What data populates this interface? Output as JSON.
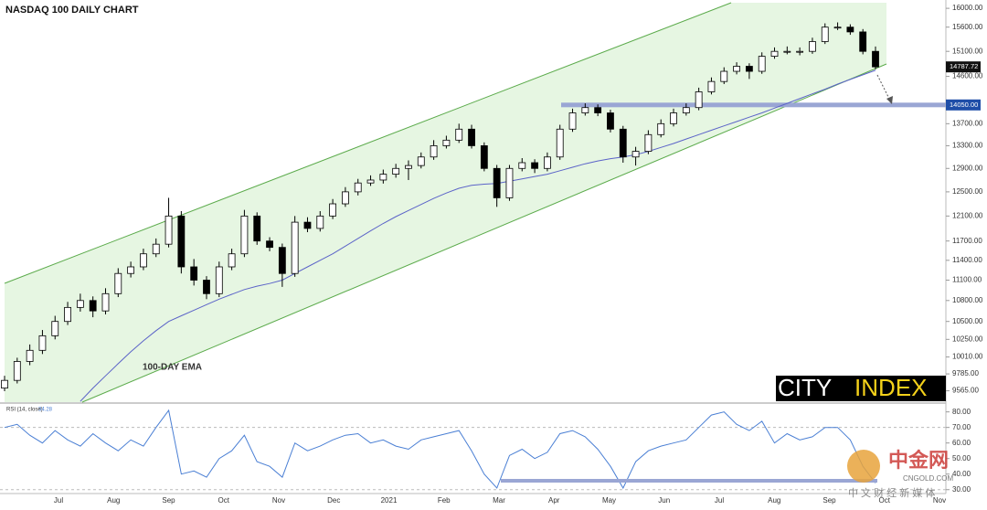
{
  "chart_data": {
    "type": "candlestick",
    "title": "NASDAQ 100 DAILY CHART",
    "x_labels": [
      "Jul",
      "Aug",
      "Sep",
      "Oct",
      "Nov",
      "Dec",
      "2021",
      "Feb",
      "Mar",
      "Apr",
      "May",
      "Jun",
      "Jul",
      "Aug",
      "Sep",
      "Oct",
      "Nov"
    ],
    "up_color": "#ffffff",
    "down_color": "#000000",
    "log_scale": true,
    "ylim": [
      9420,
      16180
    ],
    "yticks": [
      {
        "value": 16000,
        "label": "16000.00"
      },
      {
        "value": 15600,
        "label": "15600.00"
      },
      {
        "value": 15100,
        "label": "15100.00"
      },
      {
        "value": 14600,
        "label": "14600.00"
      },
      {
        "value": 13700,
        "label": "13700.00"
      },
      {
        "value": 13300,
        "label": "13300.00"
      },
      {
        "value": 12900,
        "label": "12900.00"
      },
      {
        "value": 12500,
        "label": "12500.00"
      },
      {
        "value": 12100,
        "label": "12100.00"
      },
      {
        "value": 11700,
        "label": "11700.00"
      },
      {
        "value": 11400,
        "label": "11400.00"
      },
      {
        "value": 11100,
        "label": "11100.00"
      },
      {
        "value": 10800,
        "label": "10800.00"
      },
      {
        "value": 10500,
        "label": "10500.00"
      },
      {
        "value": 10250,
        "label": "10250.00"
      },
      {
        "value": 10010,
        "label": "10010.00"
      },
      {
        "value": 9785,
        "label": "9785.00"
      },
      {
        "value": 9565,
        "label": "9565.00"
      }
    ],
    "level": {
      "value": 14050,
      "label": "14050.00",
      "color": "#9aa6d4"
    },
    "ohlc": [
      [
        9600,
        9760,
        9560,
        9700
      ],
      [
        9700,
        10000,
        9660,
        9950
      ],
      [
        9950,
        10180,
        9900,
        10100
      ],
      [
        10100,
        10380,
        10050,
        10300
      ],
      [
        10300,
        10580,
        10250,
        10500
      ],
      [
        10500,
        10780,
        10450,
        10700
      ],
      [
        10700,
        10900,
        10640,
        10800
      ],
      [
        10800,
        10860,
        10560,
        10650
      ],
      [
        10650,
        10980,
        10600,
        10900
      ],
      [
        10900,
        11280,
        10850,
        11200
      ],
      [
        11200,
        11380,
        11140,
        11300
      ],
      [
        11300,
        11580,
        11250,
        11500
      ],
      [
        11500,
        11740,
        11450,
        11650
      ],
      [
        11650,
        12400,
        11600,
        12100
      ],
      [
        12100,
        12180,
        11200,
        11300
      ],
      [
        11300,
        11420,
        11020,
        11100
      ],
      [
        11100,
        11160,
        10820,
        10900
      ],
      [
        10900,
        11380,
        10850,
        11300
      ],
      [
        11300,
        11580,
        11250,
        11500
      ],
      [
        11500,
        12200,
        11450,
        12100
      ],
      [
        12100,
        12160,
        11640,
        11700
      ],
      [
        11700,
        11760,
        11540,
        11600
      ],
      [
        11600,
        11660,
        11000,
        11200
      ],
      [
        11200,
        12100,
        11150,
        12000
      ],
      [
        12000,
        12080,
        11840,
        11900
      ],
      [
        11900,
        12180,
        11850,
        12100
      ],
      [
        12100,
        12380,
        12050,
        12300
      ],
      [
        12300,
        12580,
        12250,
        12500
      ],
      [
        12500,
        12720,
        12440,
        12650
      ],
      [
        12650,
        12780,
        12600,
        12700
      ],
      [
        12700,
        12880,
        12640,
        12800
      ],
      [
        12800,
        12980,
        12740,
        12900
      ],
      [
        12900,
        13040,
        12700,
        12950
      ],
      [
        12950,
        13180,
        12900,
        13100
      ],
      [
        13100,
        13400,
        13050,
        13300
      ],
      [
        13300,
        13480,
        13250,
        13400
      ],
      [
        13400,
        13700,
        13350,
        13600
      ],
      [
        13600,
        13680,
        13250,
        13300
      ],
      [
        13300,
        13360,
        12850,
        12900
      ],
      [
        12900,
        12960,
        12250,
        12400
      ],
      [
        12400,
        12960,
        12350,
        12900
      ],
      [
        12900,
        13080,
        12850,
        13000
      ],
      [
        13000,
        13060,
        12820,
        12900
      ],
      [
        12900,
        13180,
        12850,
        13100
      ],
      [
        13100,
        13680,
        13050,
        13600
      ],
      [
        13600,
        13980,
        13550,
        13900
      ],
      [
        13900,
        14080,
        13850,
        14000
      ],
      [
        14000,
        14060,
        13840,
        13900
      ],
      [
        13900,
        13960,
        13540,
        13600
      ],
      [
        13600,
        13660,
        13000,
        13100
      ],
      [
        13100,
        13280,
        12950,
        13200
      ],
      [
        13200,
        13580,
        13150,
        13500
      ],
      [
        13500,
        13780,
        13450,
        13700
      ],
      [
        13700,
        13980,
        13650,
        13900
      ],
      [
        13900,
        14080,
        13850,
        14000
      ],
      [
        14000,
        14380,
        13950,
        14300
      ],
      [
        14300,
        14580,
        14250,
        14500
      ],
      [
        14500,
        14780,
        14450,
        14700
      ],
      [
        14700,
        14880,
        14640,
        14800
      ],
      [
        14800,
        14860,
        14550,
        14700
      ],
      [
        14700,
        15080,
        14650,
        15000
      ],
      [
        15000,
        15180,
        14950,
        15100
      ],
      [
        15100,
        15200,
        15040,
        15100
      ],
      [
        15100,
        15180,
        15020,
        15100
      ],
      [
        15100,
        15380,
        15050,
        15300
      ],
      [
        15300,
        15680,
        15250,
        15600
      ],
      [
        15600,
        15700,
        15540,
        15600
      ],
      [
        15600,
        15660,
        15440,
        15500
      ],
      [
        15500,
        15560,
        15040,
        15100
      ],
      [
        15100,
        15200,
        14740,
        14787.72
      ]
    ],
    "ema": {
      "name": "100-DAY EMA",
      "color": "#5b63c8",
      "label_color": "#9b27c9",
      "values": [
        null,
        null,
        null,
        null,
        null,
        null,
        9430,
        9600,
        9760,
        9920,
        10080,
        10230,
        10370,
        10500,
        10580,
        10660,
        10740,
        10820,
        10890,
        10960,
        11010,
        11050,
        11100,
        11200,
        11300,
        11400,
        11500,
        11620,
        11740,
        11860,
        11980,
        12090,
        12190,
        12290,
        12390,
        12480,
        12560,
        12610,
        12630,
        12640,
        12680,
        12720,
        12760,
        12800,
        12860,
        12920,
        12980,
        13030,
        13070,
        13100,
        13140,
        13200,
        13270,
        13340,
        13420,
        13500,
        13580,
        13660,
        13740,
        13820,
        13900,
        13990,
        14080,
        14170,
        14260,
        14350,
        14450,
        14540,
        14630,
        14720
      ]
    },
    "rsi": {
      "name": "RSI (14, close)",
      "color": "#4a7fd4",
      "ylim": [
        27.5,
        84.5
      ],
      "yticks": [
        {
          "value": 80,
          "label": "80.00"
        },
        {
          "value": 70,
          "label": "70.00"
        },
        {
          "value": 60,
          "label": "60.00"
        },
        {
          "value": 50,
          "label": "50.00"
        },
        {
          "value": 40,
          "label": "40.00"
        },
        {
          "value": 30,
          "label": "30.00"
        }
      ],
      "values": [
        70,
        72,
        65,
        60,
        68,
        62,
        58,
        66,
        60,
        55,
        62,
        58,
        70,
        81,
        40,
        42,
        38,
        50,
        55,
        65,
        48,
        45,
        38,
        60,
        55,
        58,
        62,
        65,
        66,
        60,
        62,
        58,
        56,
        62,
        64,
        66,
        68,
        55,
        40,
        31,
        52,
        56,
        50,
        54,
        66,
        68,
        64,
        56,
        45,
        31,
        48,
        55,
        58,
        60,
        62,
        70,
        78,
        80,
        72,
        68,
        74,
        60,
        66,
        62,
        64,
        70,
        70,
        62,
        45,
        34.28
      ]
    }
  },
  "brand": {
    "left": "CITY",
    "right": "INDEX"
  },
  "watermark": {
    "name": "中金网",
    "site": "CNGOLD.COM",
    "slogan": "中 文 财 经 新 媒 体"
  }
}
